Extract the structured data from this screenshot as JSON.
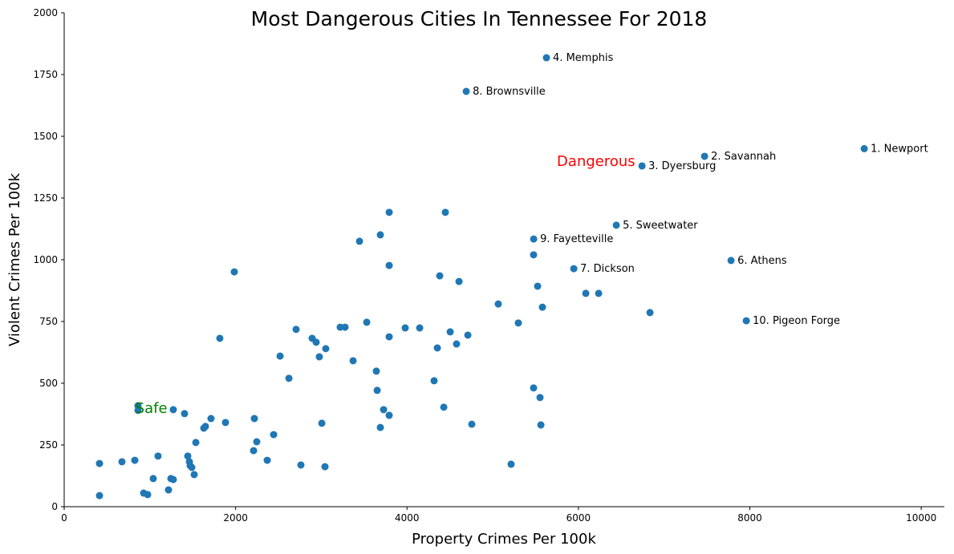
{
  "chart_data": {
    "type": "scatter",
    "title": "Most Dangerous Cities In Tennessee For 2018",
    "xlabel": "Property Crimes Per 100k",
    "ylabel": "Violent Crimes Per 100k",
    "xlim": [
      0,
      10270
    ],
    "ylim": [
      0,
      2000
    ],
    "xticks": [
      0,
      2000,
      4000,
      6000,
      8000,
      10000
    ],
    "yticks": [
      0,
      250,
      500,
      750,
      1000,
      1250,
      1500,
      1750,
      2000
    ],
    "grid": false,
    "point_color": "#1f77b4",
    "annotations": [
      {
        "text": "Dangerous",
        "x": 6700,
        "y": 1400,
        "color": "#ff0000"
      },
      {
        "text": "Safe",
        "x": 830,
        "y": 400,
        "color": "#008000"
      }
    ],
    "labeled_points": [
      {
        "label": "1. Newport",
        "x": 9335,
        "y": 1450
      },
      {
        "label": "2. Savannah",
        "x": 7472,
        "y": 1419
      },
      {
        "label": "3. Dyersburg",
        "x": 6742,
        "y": 1380
      },
      {
        "label": "4. Memphis",
        "x": 5627,
        "y": 1818
      },
      {
        "label": "5. Sweetwater",
        "x": 6442,
        "y": 1140
      },
      {
        "label": "6. Athens",
        "x": 7781,
        "y": 997
      },
      {
        "label": "7. Dickson",
        "x": 5946,
        "y": 964
      },
      {
        "label": "8. Brownsville",
        "x": 4691,
        "y": 1682
      },
      {
        "label": "9. Fayetteville",
        "x": 5478,
        "y": 1084
      },
      {
        "label": "10. Pigeon Forge",
        "x": 7959,
        "y": 753
      }
    ],
    "points": [
      [
        3792,
        1192
      ],
      [
        4447,
        1192
      ],
      [
        3689,
        1101
      ],
      [
        3446,
        1075
      ],
      [
        1985,
        951
      ],
      [
        3792,
        977
      ],
      [
        5477,
        1020
      ],
      [
        4382,
        935
      ],
      [
        4607,
        912
      ],
      [
        5524,
        893
      ],
      [
        6086,
        864
      ],
      [
        6236,
        864
      ],
      [
        5065,
        821
      ],
      [
        5580,
        808
      ],
      [
        6835,
        786
      ],
      [
        5299,
        744
      ],
      [
        3530,
        747
      ],
      [
        3277,
        727
      ],
      [
        3221,
        727
      ],
      [
        2706,
        718
      ],
      [
        3979,
        724
      ],
      [
        4148,
        724
      ],
      [
        4504,
        708
      ],
      [
        4710,
        695
      ],
      [
        1816,
        682
      ],
      [
        2893,
        682
      ],
      [
        2940,
        666
      ],
      [
        3792,
        688
      ],
      [
        3052,
        640
      ],
      [
        2977,
        607
      ],
      [
        4354,
        643
      ],
      [
        4578,
        659
      ],
      [
        2519,
        610
      ],
      [
        3371,
        591
      ],
      [
        2622,
        520
      ],
      [
        3642,
        549
      ],
      [
        3652,
        471
      ],
      [
        4316,
        510
      ],
      [
        5477,
        481
      ],
      [
        5552,
        442
      ],
      [
        4429,
        403
      ],
      [
        3727,
        393
      ],
      [
        3792,
        370
      ],
      [
        3006,
        338
      ],
      [
        4756,
        334
      ],
      [
        5562,
        331
      ],
      [
        3689,
        321
      ],
      [
        1273,
        393
      ],
      [
        1404,
        377
      ],
      [
        1713,
        357
      ],
      [
        861,
        409
      ],
      [
        861,
        390
      ],
      [
        1882,
        341
      ],
      [
        1629,
        318
      ],
      [
        1648,
        325
      ],
      [
        2219,
        357
      ],
      [
        2444,
        292
      ],
      [
        2247,
        263
      ],
      [
        2210,
        227
      ],
      [
        1536,
        260
      ],
      [
        1095,
        205
      ],
      [
        1442,
        205
      ],
      [
        1461,
        182
      ],
      [
        1470,
        166
      ],
      [
        1489,
        159
      ],
      [
        2369,
        188
      ],
      [
        2762,
        169
      ],
      [
        3043,
        162
      ],
      [
        5215,
        172
      ],
      [
        412,
        175
      ],
      [
        674,
        182
      ],
      [
        824,
        188
      ],
      [
        1039,
        114
      ],
      [
        1245,
        114
      ],
      [
        1273,
        110
      ],
      [
        1517,
        130
      ],
      [
        1217,
        68
      ],
      [
        412,
        45
      ],
      [
        927,
        55
      ],
      [
        974,
        49
      ]
    ]
  }
}
